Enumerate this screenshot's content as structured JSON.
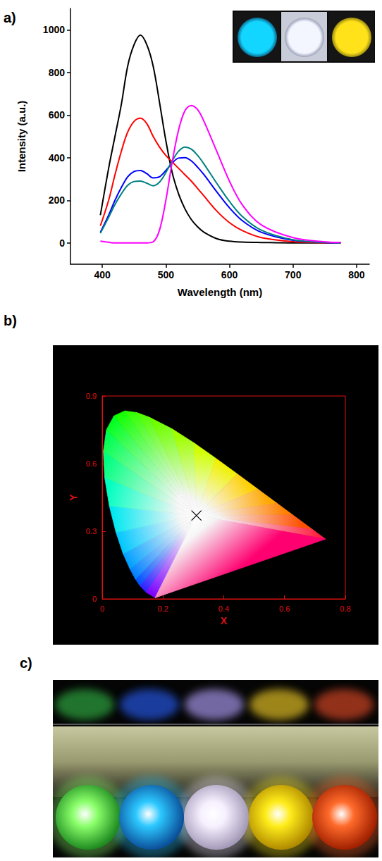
{
  "chart_data": [
    {
      "type": "line",
      "panel_label": "a)",
      "xlabel": "Wavelength (nm)",
      "ylabel": "Intensity (a.u.)",
      "x": [
        397,
        410,
        420,
        430,
        440,
        450,
        460,
        470,
        480,
        490,
        500,
        510,
        520,
        530,
        540,
        550,
        560,
        580,
        600,
        620,
        650,
        700,
        750,
        775
      ],
      "series": [
        {
          "color": "#000000",
          "values": [
            130,
            350,
            500,
            650,
            830,
            930,
            975,
            930,
            830,
            660,
            480,
            330,
            230,
            160,
            110,
            75,
            50,
            20,
            8,
            4,
            2,
            0,
            0,
            0
          ]
        },
        {
          "color": "#ff0000",
          "values": [
            80,
            200,
            320,
            430,
            520,
            570,
            585,
            560,
            500,
            450,
            410,
            380,
            350,
            320,
            290,
            255,
            220,
            150,
            95,
            58,
            25,
            6,
            1,
            0
          ]
        },
        {
          "color": "#0000ff",
          "values": [
            50,
            130,
            200,
            260,
            310,
            335,
            340,
            325,
            305,
            310,
            340,
            375,
            398,
            400,
            385,
            355,
            320,
            240,
            165,
            105,
            50,
            12,
            2,
            0
          ]
        },
        {
          "color": "#008080",
          "values": [
            45,
            120,
            180,
            230,
            270,
            288,
            290,
            280,
            268,
            285,
            330,
            385,
            430,
            450,
            440,
            410,
            370,
            280,
            195,
            125,
            60,
            15,
            3,
            0
          ]
        },
        {
          "color": "#ff00ff",
          "values": [
            8,
            3,
            0,
            0,
            0,
            0,
            0,
            0,
            5,
            60,
            200,
            380,
            530,
            620,
            645,
            625,
            570,
            430,
            290,
            180,
            85,
            25,
            5,
            2
          ]
        }
      ],
      "xlim": [
        350,
        820
      ],
      "xticks": [
        400,
        500,
        600,
        700,
        800
      ],
      "ylim": [
        -100,
        1100
      ],
      "yticks": [
        0,
        200,
        400,
        600,
        800,
        1000
      ],
      "grid": false
    },
    {
      "type": "scatter",
      "panel_label": "b)",
      "xlabel": "X",
      "ylabel": "Y",
      "series": [
        {
          "type": "area",
          "x": [
            0.1741,
            0.144,
            0.1241,
            0.1096,
            0.0913,
            0.0687,
            0.0454,
            0.0235,
            0.0082,
            0.0039,
            0.0139,
            0.0389,
            0.0743,
            0.1142,
            0.1547,
            0.2296,
            0.3016,
            0.3731,
            0.4441,
            0.5125,
            0.5752,
            0.627,
            0.6915,
            0.7347
          ],
          "values": [
            0.005,
            0.0297,
            0.0578,
            0.0868,
            0.1327,
            0.2007,
            0.295,
            0.4127,
            0.5384,
            0.6548,
            0.7502,
            0.812,
            0.8338,
            0.8262,
            0.8059,
            0.7543,
            0.6923,
            0.6245,
            0.5547,
            0.4866,
            0.4242,
            0.3725,
            0.3083,
            0.2653
          ],
          "colors": [
            "#7a00ff",
            "#3020ff",
            "#0050ff",
            "#0080ff",
            "#00a0ff",
            "#00c8ff",
            "#00e8f0",
            "#00ffc0",
            "#00ff80",
            "#00ff50",
            "#00ff20",
            "#10ff00",
            "#30ff00",
            "#50ff00",
            "#70ff00",
            "#a0ff00",
            "#d0ff00",
            "#f0f000",
            "#ffd000",
            "#ffa800",
            "#ff8000",
            "#ff5000",
            "#ff2040",
            "#ff0070"
          ]
        },
        {
          "type": "scatter",
          "marker": "x",
          "color": "#000000",
          "x": [
            0.31
          ],
          "values": [
            0.37
          ]
        }
      ],
      "xlim": [
        0,
        0.8
      ],
      "xticks": [
        0,
        0.2,
        0.4,
        0.6,
        0.8
      ],
      "ylim": [
        0,
        0.9
      ],
      "yticks": [
        0,
        0.3,
        0.6,
        0.9
      ],
      "grid": false
    }
  ],
  "image": {
    "panel_label": "c)"
  }
}
